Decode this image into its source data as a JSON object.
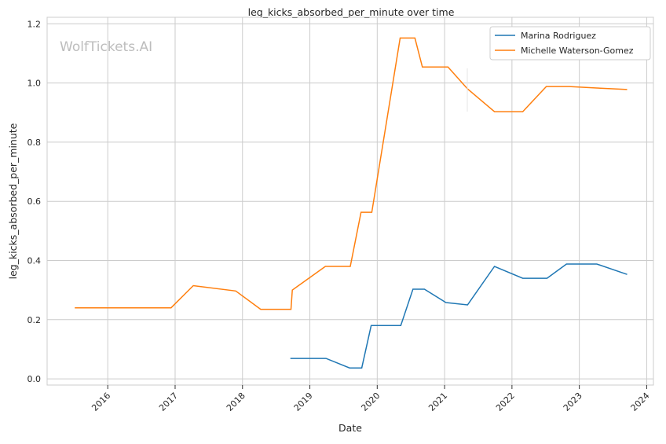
{
  "chart_data": {
    "type": "line",
    "title": "leg_kicks_absorbed_per_minute over time",
    "xlabel": "Date",
    "ylabel": "leg_kicks_absorbed_per_minute",
    "watermark": "WolfTickets.AI",
    "xlim": [
      2015.1,
      2024.1
    ],
    "ylim": [
      -0.021,
      1.222
    ],
    "xticks": [
      2016,
      2017,
      2018,
      2019,
      2020,
      2021,
      2022,
      2023,
      2024
    ],
    "xtick_labels": [
      "2016",
      "2017",
      "2018",
      "2019",
      "2020",
      "2021",
      "2022",
      "2023",
      "2024"
    ],
    "yticks": [
      0.0,
      0.2,
      0.4,
      0.6,
      0.8,
      1.0,
      1.2
    ],
    "ytick_labels": [
      "0.0",
      "0.2",
      "0.4",
      "0.6",
      "0.8",
      "1.0",
      "1.2"
    ],
    "grid": true,
    "legend_position": "top-right",
    "series": [
      {
        "name": "Marina Rodriguez",
        "color": "#1f77b4",
        "x": [
          2018.71,
          2019.24,
          2019.59,
          2019.77,
          2019.91,
          2020.35,
          2020.53,
          2020.7,
          2021.02,
          2021.34,
          2021.74,
          2022.16,
          2022.52,
          2022.81,
          2023.26,
          2023.71
        ],
        "y": [
          0.069,
          0.069,
          0.037,
          0.037,
          0.18,
          0.18,
          0.303,
          0.303,
          0.258,
          0.25,
          0.38,
          0.34,
          0.34,
          0.388,
          0.388,
          0.353
        ]
      },
      {
        "name": "Michelle Waterson-Gomez",
        "color": "#ff7f0e",
        "x": [
          2015.51,
          2016.94,
          2017.27,
          2017.9,
          2018.27,
          2018.72,
          2018.74,
          2019.23,
          2019.6,
          2019.76,
          2019.92,
          2020.34,
          2020.56,
          2020.67,
          2021.05,
          2021.34,
          2021.74,
          2022.16,
          2022.51,
          2022.85,
          2023.26,
          2023.71
        ],
        "y": [
          0.24,
          0.24,
          0.315,
          0.297,
          0.235,
          0.235,
          0.3,
          0.38,
          0.38,
          0.563,
          0.563,
          1.152,
          1.152,
          1.054,
          1.054,
          0.98,
          0.903,
          0.903,
          0.988,
          0.988,
          0.983,
          0.978
        ]
      }
    ]
  }
}
